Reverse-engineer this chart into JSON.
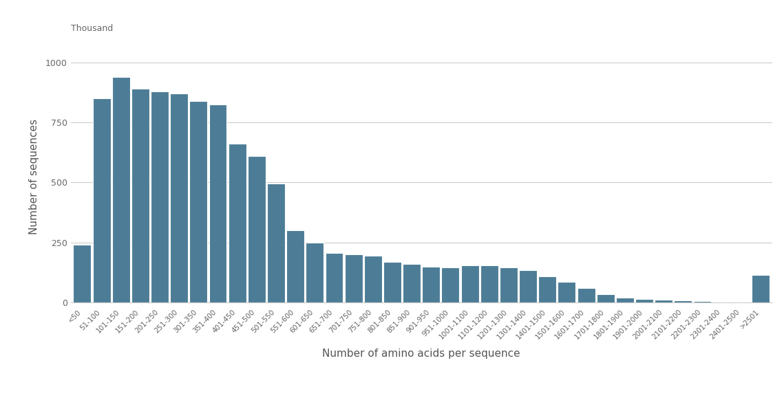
{
  "categories": [
    "<50",
    "51-100",
    "101-150",
    "151-200",
    "201-250",
    "251-300",
    "301-350",
    "351-400",
    "401-450",
    "451-500",
    "501-550",
    "551-600",
    "601-650",
    "651-700",
    "701-750",
    "751-800",
    "801-850",
    "851-900",
    "901-950",
    "951-1000",
    "1001-1100",
    "1101-1200",
    "1201-1300",
    "1301-1400",
    "1401-1500",
    "1501-1600",
    "1601-1700",
    "1701-1800",
    "1801-1900",
    "1901-2000",
    "2001-2100",
    "2101-2200",
    "2201-2300",
    "2301-2400",
    "2401-2500",
    ">2501"
  ],
  "values": [
    240,
    850,
    940,
    890,
    880,
    870,
    840,
    825,
    660,
    610,
    495,
    300,
    250,
    205,
    200,
    195,
    170,
    160,
    150,
    145,
    155,
    155,
    145,
    135,
    110,
    85,
    60,
    35,
    20,
    15,
    10,
    8,
    5,
    4,
    3,
    115
  ],
  "bar_color": "#4d7d96",
  "xlabel": "Number of amino acids per sequence",
  "ylabel": "Number of sequences",
  "unit_label": "Thousand",
  "ylim": [
    0,
    1050
  ],
  "yticks": [
    0,
    250,
    500,
    750,
    1000
  ],
  "background_color": "#ffffff",
  "grid_color": "#cccccc",
  "tick_label_color": "#666666",
  "axis_label_color": "#555555",
  "bar_gap": 0.08
}
